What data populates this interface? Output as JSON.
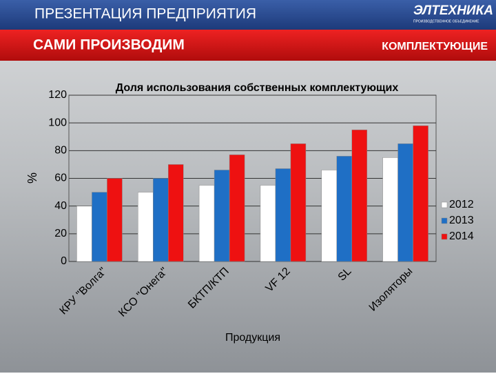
{
  "header": {
    "title": "ПРЕЗЕНТАЦИЯ ПРЕДПРИЯТИЯ",
    "logo": "ЭЛТЕХНИКА",
    "logo_subtitle": "ПРОИЗВОДСТВЕННОЕ ОБЪЕДИНЕНИЕ",
    "section": "САМИ ПРОИЗВОДИМ",
    "subsection": "КОМПЛЕКТУЮЩИЕ"
  },
  "chart_data": {
    "type": "bar",
    "title": "Доля использования собственных комплектующих",
    "x_label": "Продукция",
    "y_label": "%",
    "categories": [
      "КРУ \"Волга\"",
      "КСО \"Онега\"",
      "БКТП/КТП",
      "VF 12",
      "SL",
      "Изоляторы"
    ],
    "series": [
      {
        "name": "2012",
        "color": "#ffffff",
        "values": [
          40,
          50,
          55,
          55,
          66,
          75
        ]
      },
      {
        "name": "2013",
        "color": "#1f6fc5",
        "values": [
          50,
          60,
          66,
          67,
          76,
          85
        ]
      },
      {
        "name": "2014",
        "color": "#ee1111",
        "values": [
          60,
          70,
          77,
          85,
          95,
          98
        ]
      }
    ],
    "ylim": [
      0,
      120
    ],
    "yticks": [
      0,
      20,
      40,
      60,
      80,
      100,
      120
    ],
    "grid": true,
    "legend": "right"
  }
}
